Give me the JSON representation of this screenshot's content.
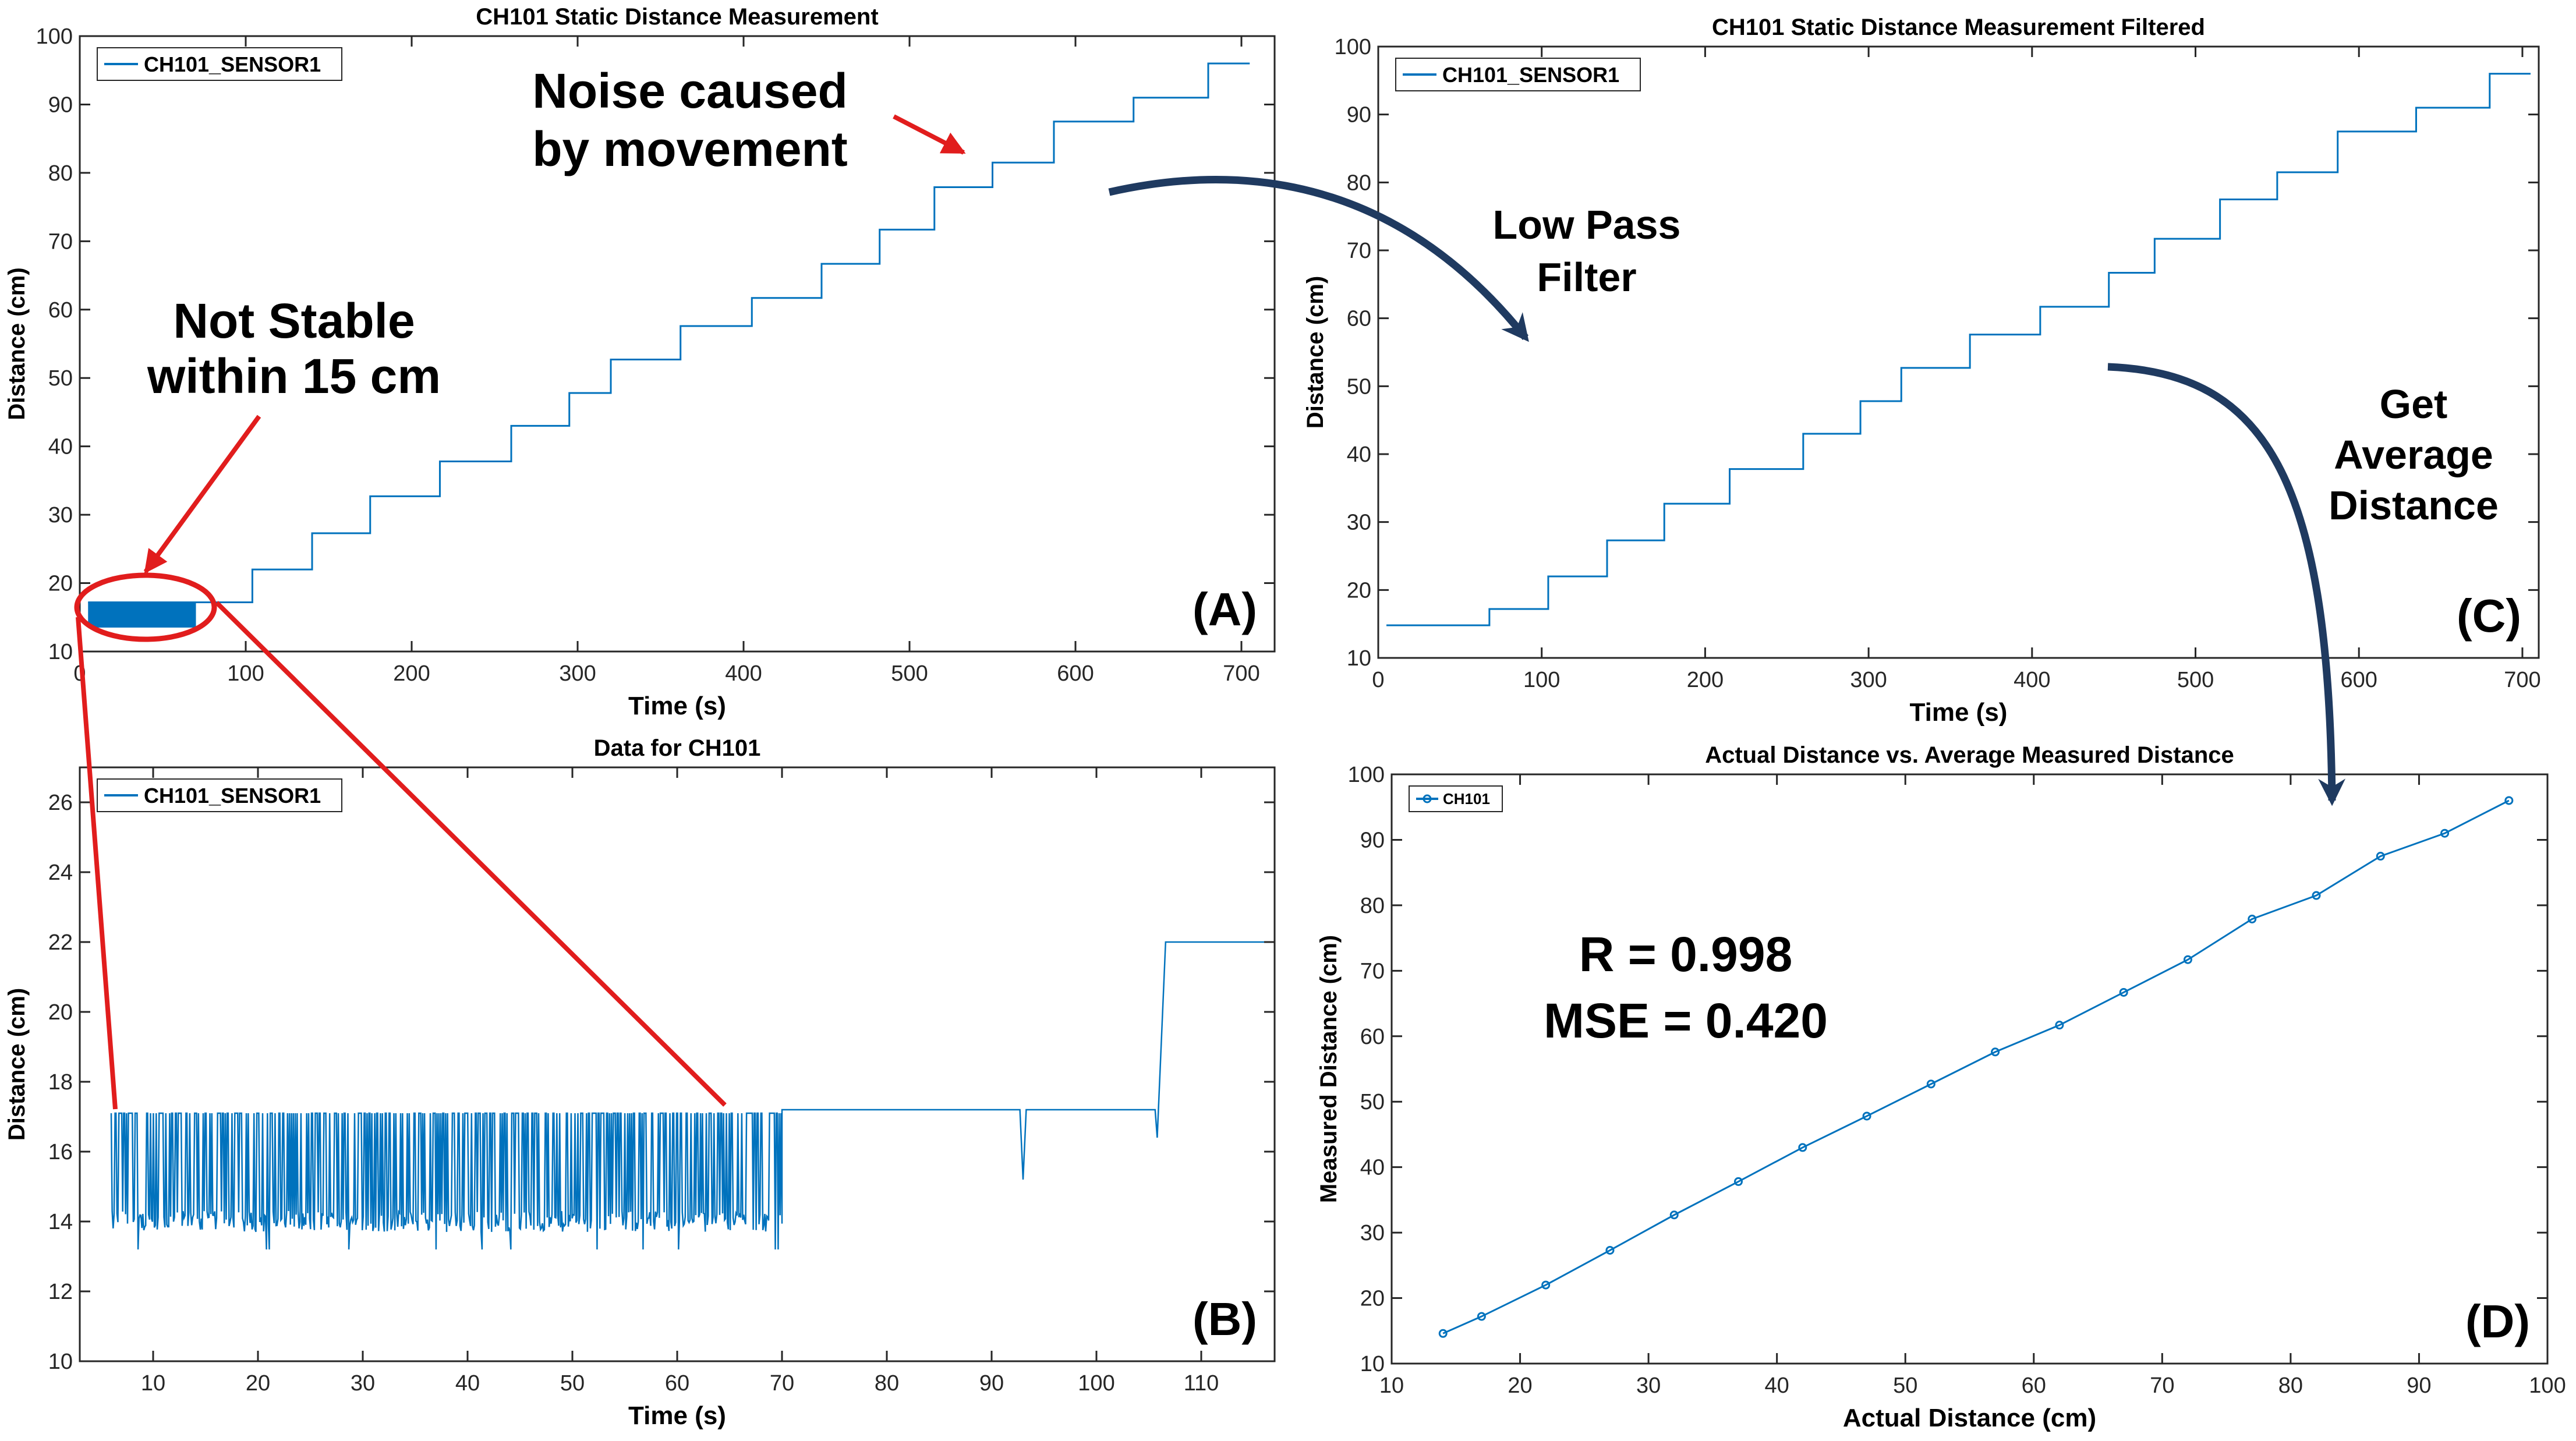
{
  "colors": {
    "series": "#0072BD",
    "axis": "#262626",
    "annotation": "#e11d1d",
    "flow_arrow": "#1f3a60",
    "text": "#000000"
  },
  "annotations": {
    "noise_line1": "Noise caused",
    "noise_line2": "by movement",
    "unstable_line1": "Not Stable",
    "unstable_line2": "within 15 cm",
    "lowpass_line1": "Low Pass",
    "lowpass_line2": "Filter",
    "average_line1": "Get",
    "average_line2": "Average",
    "average_line3": "Distance",
    "r_text": "R = 0.998",
    "mse_text": "MSE = 0.420"
  },
  "chart_data": [
    {
      "id": "A",
      "panel_label": "(A)",
      "type": "line",
      "title": "CH101 Static Distance Measurement",
      "xlabel": "Time (s)",
      "ylabel": "Distance (cm)",
      "xlim": [
        0,
        720
      ],
      "ylim": [
        10,
        100
      ],
      "xticks": [
        0,
        100,
        200,
        300,
        400,
        500,
        600,
        700
      ],
      "yticks": [
        10,
        20,
        30,
        40,
        50,
        60,
        70,
        80,
        90,
        100
      ],
      "legend": [
        "CH101_SENSOR1"
      ],
      "legend_position": "top-left",
      "series": [
        {
          "name": "CH101_SENSOR1",
          "steps": [
            [
              5,
              17.2
            ],
            [
              70,
              17.2
            ],
            [
              104,
              22
            ],
            [
              140,
              27.3
            ],
            [
              175,
              32.7
            ],
            [
              217,
              37.8
            ],
            [
              260,
              43
            ],
            [
              295,
              47.8
            ],
            [
              320,
              52.7
            ],
            [
              362,
              57.6
            ],
            [
              405,
              61.7
            ],
            [
              447,
              66.7
            ],
            [
              482,
              71.7
            ],
            [
              515,
              77.9
            ],
            [
              550,
              81.5
            ],
            [
              587,
              87.5
            ],
            [
              635,
              91
            ],
            [
              680,
              96
            ],
            [
              705,
              96
            ]
          ],
          "noisy_interval": [
            5,
            70
          ],
          "noisy_range": [
            13.5,
            17.2
          ]
        }
      ]
    },
    {
      "id": "B",
      "panel_label": "(B)",
      "type": "line",
      "title": "Data for CH101",
      "xlabel": "Time (s)",
      "ylabel": "Distance (cm)",
      "xlim": [
        3,
        117
      ],
      "ylim": [
        10,
        27
      ],
      "xticks": [
        10,
        20,
        30,
        40,
        50,
        60,
        70,
        80,
        90,
        100,
        110
      ],
      "yticks": [
        10,
        12,
        14,
        16,
        18,
        20,
        22,
        24,
        26
      ],
      "legend": [
        "CH101_SENSOR1"
      ],
      "legend_position": "top-left",
      "series": [
        {
          "name": "CH101_SENSOR1",
          "noisy_interval": [
            6,
            70
          ],
          "noisy_baseline": 14,
          "noisy_peak": 17.1,
          "stable_level": 17.2,
          "dip_time": 93,
          "dip_value": 15.2,
          "step_time": 106,
          "step_value": 22,
          "end_time": 116
        }
      ]
    },
    {
      "id": "C",
      "panel_label": "(C)",
      "type": "line",
      "title": "CH101 Static Distance Measurement Filtered",
      "xlabel": "Time (s)",
      "ylabel": "Distance (cm)",
      "xlim": [
        0,
        710
      ],
      "ylim": [
        10,
        100
      ],
      "xticks": [
        0,
        100,
        200,
        300,
        400,
        500,
        600,
        700
      ],
      "yticks": [
        10,
        20,
        30,
        40,
        50,
        60,
        70,
        80,
        90,
        100
      ],
      "legend": [
        "CH101_SENSOR1"
      ],
      "legend_position": "top-left",
      "series": [
        {
          "name": "CH101_SENSOR1",
          "steps": [
            [
              5,
              14.8
            ],
            [
              68,
              17.2
            ],
            [
              104,
              22
            ],
            [
              140,
              27.3
            ],
            [
              175,
              32.7
            ],
            [
              215,
              37.8
            ],
            [
              260,
              43
            ],
            [
              295,
              47.8
            ],
            [
              320,
              52.7
            ],
            [
              362,
              57.6
            ],
            [
              405,
              61.7
            ],
            [
              447,
              66.7
            ],
            [
              475,
              71.7
            ],
            [
              515,
              77.5
            ],
            [
              550,
              81.5
            ],
            [
              587,
              87.5
            ],
            [
              635,
              91
            ],
            [
              680,
              96
            ],
            [
              705,
              96
            ]
          ]
        }
      ]
    },
    {
      "id": "D",
      "panel_label": "(D)",
      "type": "line",
      "title": "Actual Distance vs. Average Measured Distance",
      "xlabel": "Actual Distance (cm)",
      "ylabel": "Measured Distance (cm)",
      "xlim": [
        10,
        100
      ],
      "ylim": [
        10,
        100
      ],
      "xticks": [
        10,
        20,
        30,
        40,
        50,
        60,
        70,
        80,
        90,
        100
      ],
      "yticks": [
        10,
        20,
        30,
        40,
        50,
        60,
        70,
        80,
        90,
        100
      ],
      "legend": [
        "CH101"
      ],
      "legend_position": "top-left",
      "series": [
        {
          "name": "CH101",
          "x": [
            14,
            17,
            22,
            27,
            32,
            37,
            42,
            47,
            52,
            57,
            62,
            67,
            72,
            77,
            82,
            87,
            92,
            97
          ],
          "y": [
            14.6,
            17.2,
            22,
            27.3,
            32.7,
            37.8,
            43,
            47.8,
            52.7,
            57.6,
            61.7,
            66.7,
            71.7,
            77.9,
            81.5,
            87.5,
            91,
            96
          ]
        }
      ]
    }
  ]
}
